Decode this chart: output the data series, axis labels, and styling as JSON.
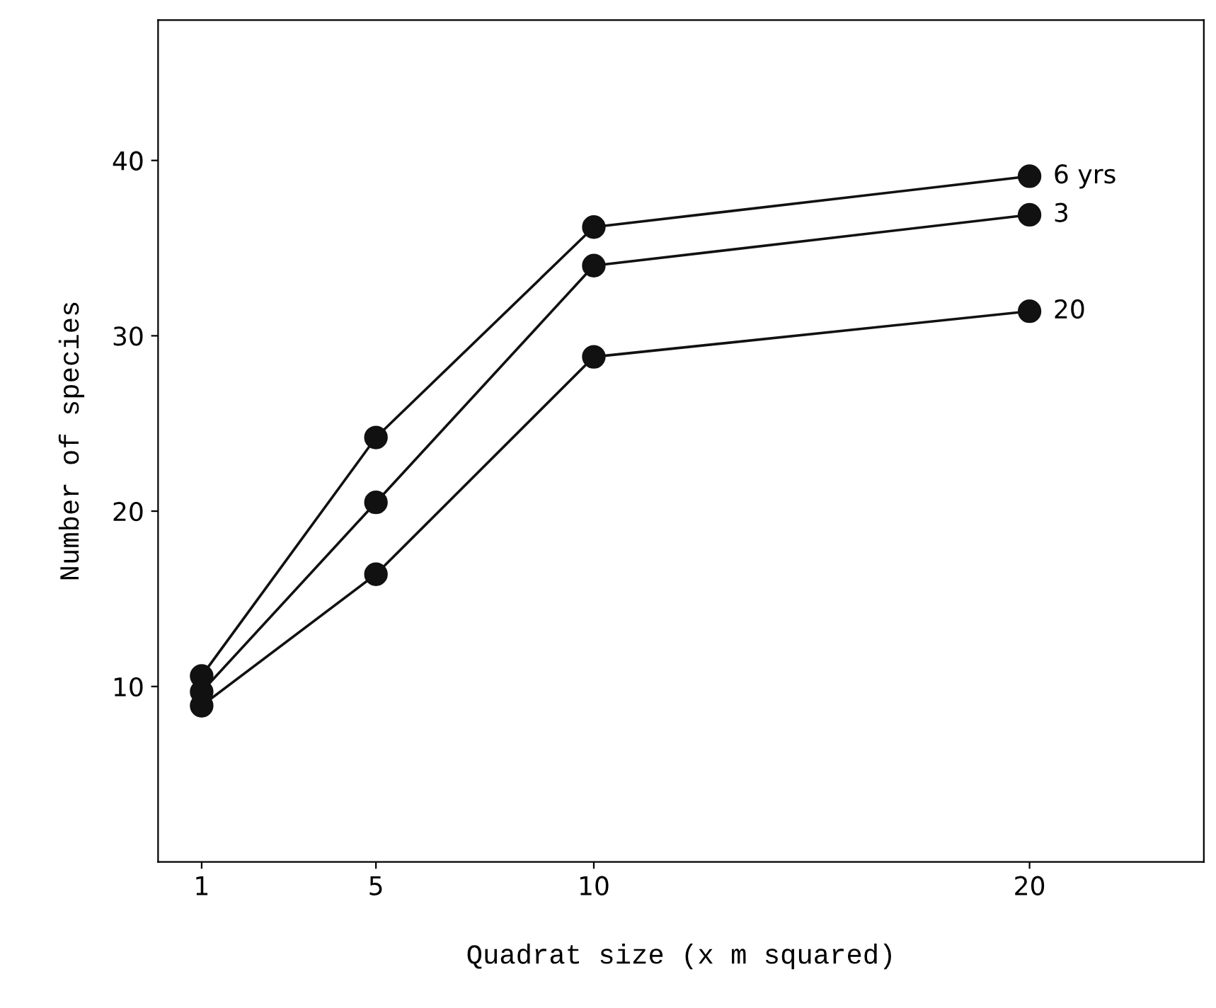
{
  "chart_data": {
    "type": "line",
    "xlabel": "Quadrat size (x m squared)",
    "ylabel": "Number of species",
    "x": [
      1,
      5,
      10,
      20
    ],
    "series": [
      {
        "name": "6 yrs",
        "color": "#111111",
        "values": [
          10.6,
          24.2,
          36.2,
          39.1
        ]
      },
      {
        "name": "3",
        "color": "#111111",
        "values": [
          9.7,
          20.5,
          34.0,
          36.9
        ]
      },
      {
        "name": "20",
        "color": "#111111",
        "values": [
          8.9,
          16.4,
          28.8,
          31.4
        ]
      }
    ],
    "xlim": [
      0,
      24
    ],
    "ylim": [
      0,
      48
    ],
    "xticks": [
      1,
      5,
      10,
      20
    ],
    "yticks": [
      10,
      20,
      30,
      40
    ],
    "marker": "circle",
    "line_style": "solid",
    "grid": false,
    "legend": false
  }
}
